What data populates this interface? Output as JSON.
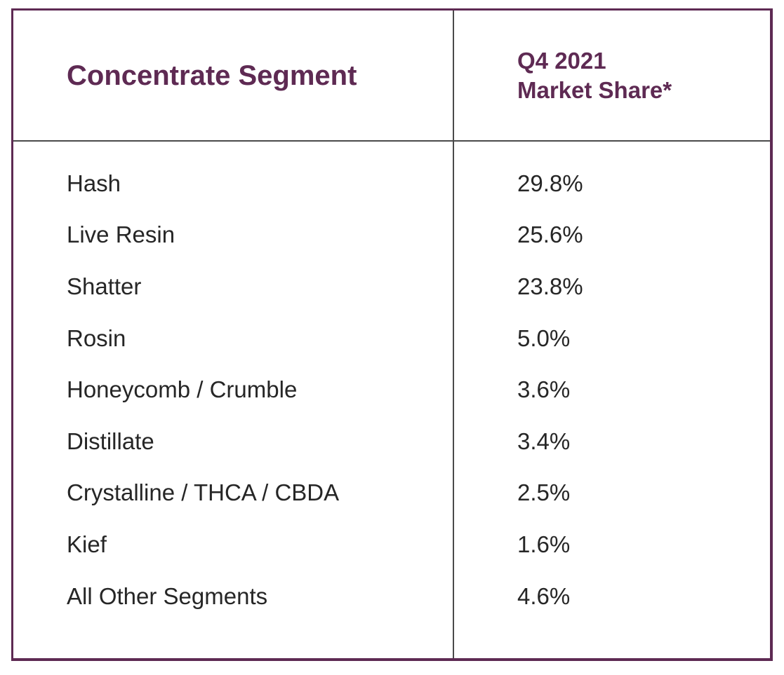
{
  "colors": {
    "accent": "#5e2a53",
    "divider": "#4a4a4a",
    "body_text": "#262626"
  },
  "table": {
    "header": {
      "segment_column": "Concentrate Segment",
      "share_column_line1": "Q4 2021",
      "share_column_line2": "Market Share*"
    },
    "rows": [
      {
        "segment": "Hash",
        "share": "29.8%"
      },
      {
        "segment": "Live Resin",
        "share": "25.6%"
      },
      {
        "segment": "Shatter",
        "share": "23.8%"
      },
      {
        "segment": "Rosin",
        "share": "5.0%"
      },
      {
        "segment": "Honeycomb / Crumble",
        "share": "3.6%"
      },
      {
        "segment": "Distillate",
        "share": "3.4%"
      },
      {
        "segment": "Crystalline / THCA / CBDA",
        "share": "2.5%"
      },
      {
        "segment": "Kief",
        "share": "1.6%"
      },
      {
        "segment": "All Other Segments",
        "share": "4.6%"
      }
    ]
  },
  "chart_data": {
    "type": "table",
    "title": "",
    "columns": [
      "Concentrate Segment",
      "Q4 2021 Market Share*"
    ],
    "categories": [
      "Hash",
      "Live Resin",
      "Shatter",
      "Rosin",
      "Honeycomb / Crumble",
      "Distillate",
      "Crystalline / THCA / CBDA",
      "Kief",
      "All Other Segments"
    ],
    "values": [
      29.8,
      25.6,
      23.8,
      5.0,
      3.6,
      3.4,
      2.5,
      1.6,
      4.6
    ],
    "unit": "%",
    "notes": "asterisk on Market Share header denotes footnote"
  }
}
